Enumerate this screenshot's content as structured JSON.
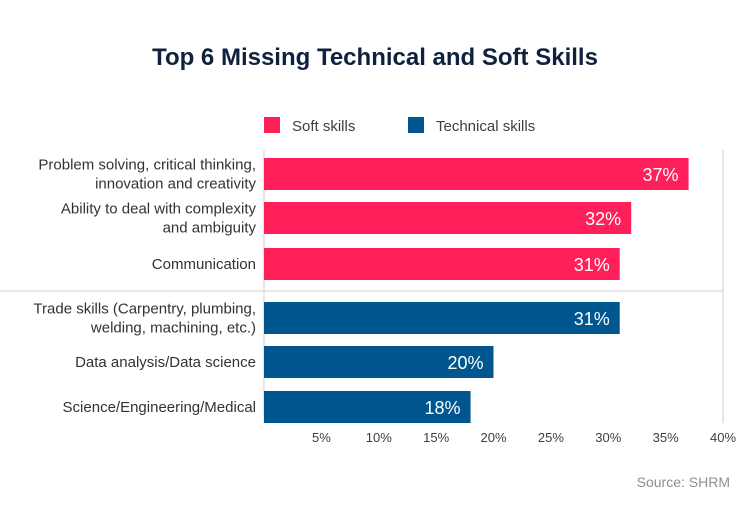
{
  "chart_data": {
    "type": "bar",
    "orientation": "horizontal",
    "title": "Top 6 Missing Technical and Soft Skills",
    "source": "Source: SHRM",
    "xlim": [
      0,
      40
    ],
    "ticks": [
      "5%",
      "10%",
      "15%",
      "20%",
      "25%",
      "30%",
      "35%",
      "40%"
    ],
    "tick_values": [
      5,
      10,
      15,
      20,
      25,
      30,
      35,
      40
    ],
    "legend_position": "top",
    "series": [
      {
        "name": "Soft skills",
        "color": "#ff1f5a"
      },
      {
        "name": "Technical skills",
        "color": "#00568e"
      }
    ],
    "bars": [
      {
        "label_lines": [
          "Problem solving, critical thinking,",
          "innovation and creativity"
        ],
        "value": 37,
        "value_label": "37%",
        "series": 0
      },
      {
        "label_lines": [
          "Ability to deal with complexity",
          "and ambiguity"
        ],
        "value": 32,
        "value_label": "32%",
        "series": 0
      },
      {
        "label_lines": [
          "Communication"
        ],
        "value": 31,
        "value_label": "31%",
        "series": 0
      },
      {
        "label_lines": [
          "Trade skills (Carpentry, plumbing,",
          "welding, machining, etc.)"
        ],
        "value": 31,
        "value_label": "31%",
        "series": 1
      },
      {
        "label_lines": [
          "Data analysis/Data science"
        ],
        "value": 20,
        "value_label": "20%",
        "series": 1
      },
      {
        "label_lines": [
          "Science/Engineering/Medical"
        ],
        "value": 18,
        "value_label": "18%",
        "series": 1
      }
    ],
    "grid": false
  }
}
